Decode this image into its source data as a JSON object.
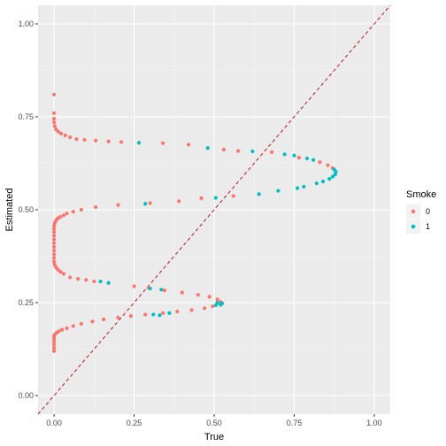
{
  "chart_data": {
    "type": "scatter",
    "xlabel": "True",
    "ylabel": "Estimated",
    "xlim": [
      -0.05,
      1.05
    ],
    "ylim": [
      -0.05,
      1.05
    ],
    "x_ticks": [
      0.0,
      0.25,
      0.5,
      0.75,
      1.0
    ],
    "x_tick_labels": [
      "0.00",
      "0.25",
      "0.50",
      "0.75",
      "1.00"
    ],
    "y_ticks": [
      0.0,
      0.25,
      0.5,
      0.75,
      1.0
    ],
    "y_tick_labels": [
      "0.00",
      "0.25",
      "0.50",
      "0.75",
      "1.00"
    ],
    "grid": true,
    "reference_line": {
      "slope": 1,
      "intercept": 0,
      "style": "dashed",
      "color": "#b2182b"
    },
    "legend": {
      "title": "Smoke",
      "position": "right",
      "entries": [
        "0",
        "1"
      ]
    },
    "colors": {
      "0": "#F8766D",
      "1": "#00BFC4",
      "panel": "#EBEBEB"
    },
    "series": [
      {
        "name": "0",
        "points": [
          [
            0.0,
            0.81
          ],
          [
            0.0,
            0.76
          ],
          [
            0.0,
            0.745
          ],
          [
            0.0,
            0.735
          ],
          [
            0.002,
            0.725
          ],
          [
            0.006,
            0.716
          ],
          [
            0.013,
            0.71
          ],
          [
            0.022,
            0.705
          ],
          [
            0.035,
            0.7
          ],
          [
            0.05,
            0.695
          ],
          [
            0.07,
            0.69
          ],
          [
            0.095,
            0.688
          ],
          [
            0.13,
            0.686
          ],
          [
            0.17,
            0.684
          ],
          [
            0.21,
            0.682
          ],
          [
            0.34,
            0.679
          ],
          [
            0.42,
            0.675
          ],
          [
            0.53,
            0.662
          ],
          [
            0.575,
            0.658
          ],
          [
            0.68,
            0.655
          ],
          [
            0.765,
            0.64
          ],
          [
            0.83,
            0.628
          ],
          [
            0.855,
            0.62
          ],
          [
            0.87,
            0.612
          ],
          [
            0.56,
            0.537
          ],
          [
            0.46,
            0.531
          ],
          [
            0.39,
            0.523
          ],
          [
            0.3,
            0.518
          ],
          [
            0.2,
            0.513
          ],
          [
            0.13,
            0.507
          ],
          [
            0.085,
            0.5
          ],
          [
            0.06,
            0.495
          ],
          [
            0.04,
            0.49
          ],
          [
            0.03,
            0.485
          ],
          [
            0.02,
            0.481
          ],
          [
            0.012,
            0.477
          ],
          [
            0.008,
            0.473
          ],
          [
            0.004,
            0.468
          ],
          [
            0.002,
            0.463
          ],
          [
            0.0,
            0.456
          ],
          [
            0.0,
            0.448
          ],
          [
            0.0,
            0.44
          ],
          [
            0.0,
            0.43
          ],
          [
            0.0,
            0.42
          ],
          [
            0.0,
            0.41
          ],
          [
            0.0,
            0.4
          ],
          [
            0.0,
            0.39
          ],
          [
            0.0,
            0.38
          ],
          [
            0.0,
            0.37
          ],
          [
            0.0,
            0.36
          ],
          [
            0.002,
            0.352
          ],
          [
            0.006,
            0.345
          ],
          [
            0.012,
            0.339
          ],
          [
            0.02,
            0.333
          ],
          [
            0.03,
            0.328
          ],
          [
            0.05,
            0.318
          ],
          [
            0.075,
            0.314
          ],
          [
            0.1,
            0.311
          ],
          [
            0.125,
            0.307
          ],
          [
            0.25,
            0.294
          ],
          [
            0.295,
            0.29
          ],
          [
            0.345,
            0.283
          ],
          [
            0.4,
            0.277
          ],
          [
            0.45,
            0.271
          ],
          [
            0.485,
            0.266
          ],
          [
            0.51,
            0.259
          ],
          [
            0.52,
            0.252
          ],
          [
            0.495,
            0.24
          ],
          [
            0.47,
            0.235
          ],
          [
            0.43,
            0.23
          ],
          [
            0.385,
            0.226
          ],
          [
            0.34,
            0.222
          ],
          [
            0.285,
            0.218
          ],
          [
            0.24,
            0.214
          ],
          [
            0.2,
            0.21
          ],
          [
            0.155,
            0.205
          ],
          [
            0.12,
            0.199
          ],
          [
            0.085,
            0.193
          ],
          [
            0.06,
            0.187
          ],
          [
            0.04,
            0.181
          ],
          [
            0.025,
            0.177
          ],
          [
            0.015,
            0.173
          ],
          [
            0.008,
            0.169
          ],
          [
            0.003,
            0.165
          ],
          [
            0.0,
            0.16
          ],
          [
            0.0,
            0.153
          ],
          [
            0.0,
            0.145
          ],
          [
            0.0,
            0.137
          ],
          [
            0.0,
            0.128
          ],
          [
            0.0,
            0.12
          ]
        ]
      },
      {
        "name": "1",
        "points": [
          [
            0.265,
            0.68
          ],
          [
            0.48,
            0.666
          ],
          [
            0.62,
            0.657
          ],
          [
            0.72,
            0.649
          ],
          [
            0.75,
            0.646
          ],
          [
            0.79,
            0.638
          ],
          [
            0.81,
            0.634
          ],
          [
            0.875,
            0.608
          ],
          [
            0.88,
            0.602
          ],
          [
            0.878,
            0.595
          ],
          [
            0.87,
            0.589
          ],
          [
            0.86,
            0.583
          ],
          [
            0.84,
            0.576
          ],
          [
            0.82,
            0.571
          ],
          [
            0.78,
            0.562
          ],
          [
            0.76,
            0.558
          ],
          [
            0.7,
            0.551
          ],
          [
            0.64,
            0.542
          ],
          [
            0.505,
            0.532
          ],
          [
            0.285,
            0.516
          ],
          [
            0.145,
            0.307
          ],
          [
            0.17,
            0.303
          ],
          [
            0.3,
            0.288
          ],
          [
            0.335,
            0.285
          ],
          [
            0.51,
            0.25
          ],
          [
            0.525,
            0.248
          ],
          [
            0.52,
            0.244
          ],
          [
            0.505,
            0.243
          ],
          [
            0.36,
            0.222
          ],
          [
            0.31,
            0.218
          ],
          [
            0.33,
            0.216
          ]
        ]
      }
    ]
  }
}
